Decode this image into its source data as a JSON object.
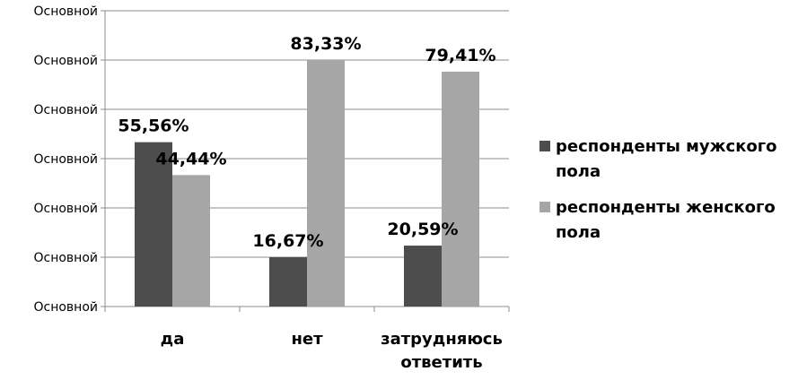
{
  "chart_data": {
    "type": "bar",
    "categories": [
      "да",
      "нет",
      "затрудняюсь\nответить"
    ],
    "series": [
      {
        "name": "респонденты мужского пола",
        "values": [
          55.56,
          16.67,
          20.59
        ],
        "labels": [
          "55,56%",
          "16,67%",
          "20,59%"
        ],
        "color": "#4d4d4d"
      },
      {
        "name": "респонденты женского пола",
        "values": [
          44.44,
          83.33,
          79.41
        ],
        "labels": [
          "44,44%",
          "83,33%",
          "79,41%"
        ],
        "color": "#a6a6a6"
      }
    ],
    "ytick_labels": [
      "Основной",
      "Основной",
      "Основной",
      "Основной",
      "Основной",
      "Основной",
      "Основной"
    ],
    "ylim": [
      0,
      100
    ],
    "grid": true,
    "legend_position": "right"
  }
}
